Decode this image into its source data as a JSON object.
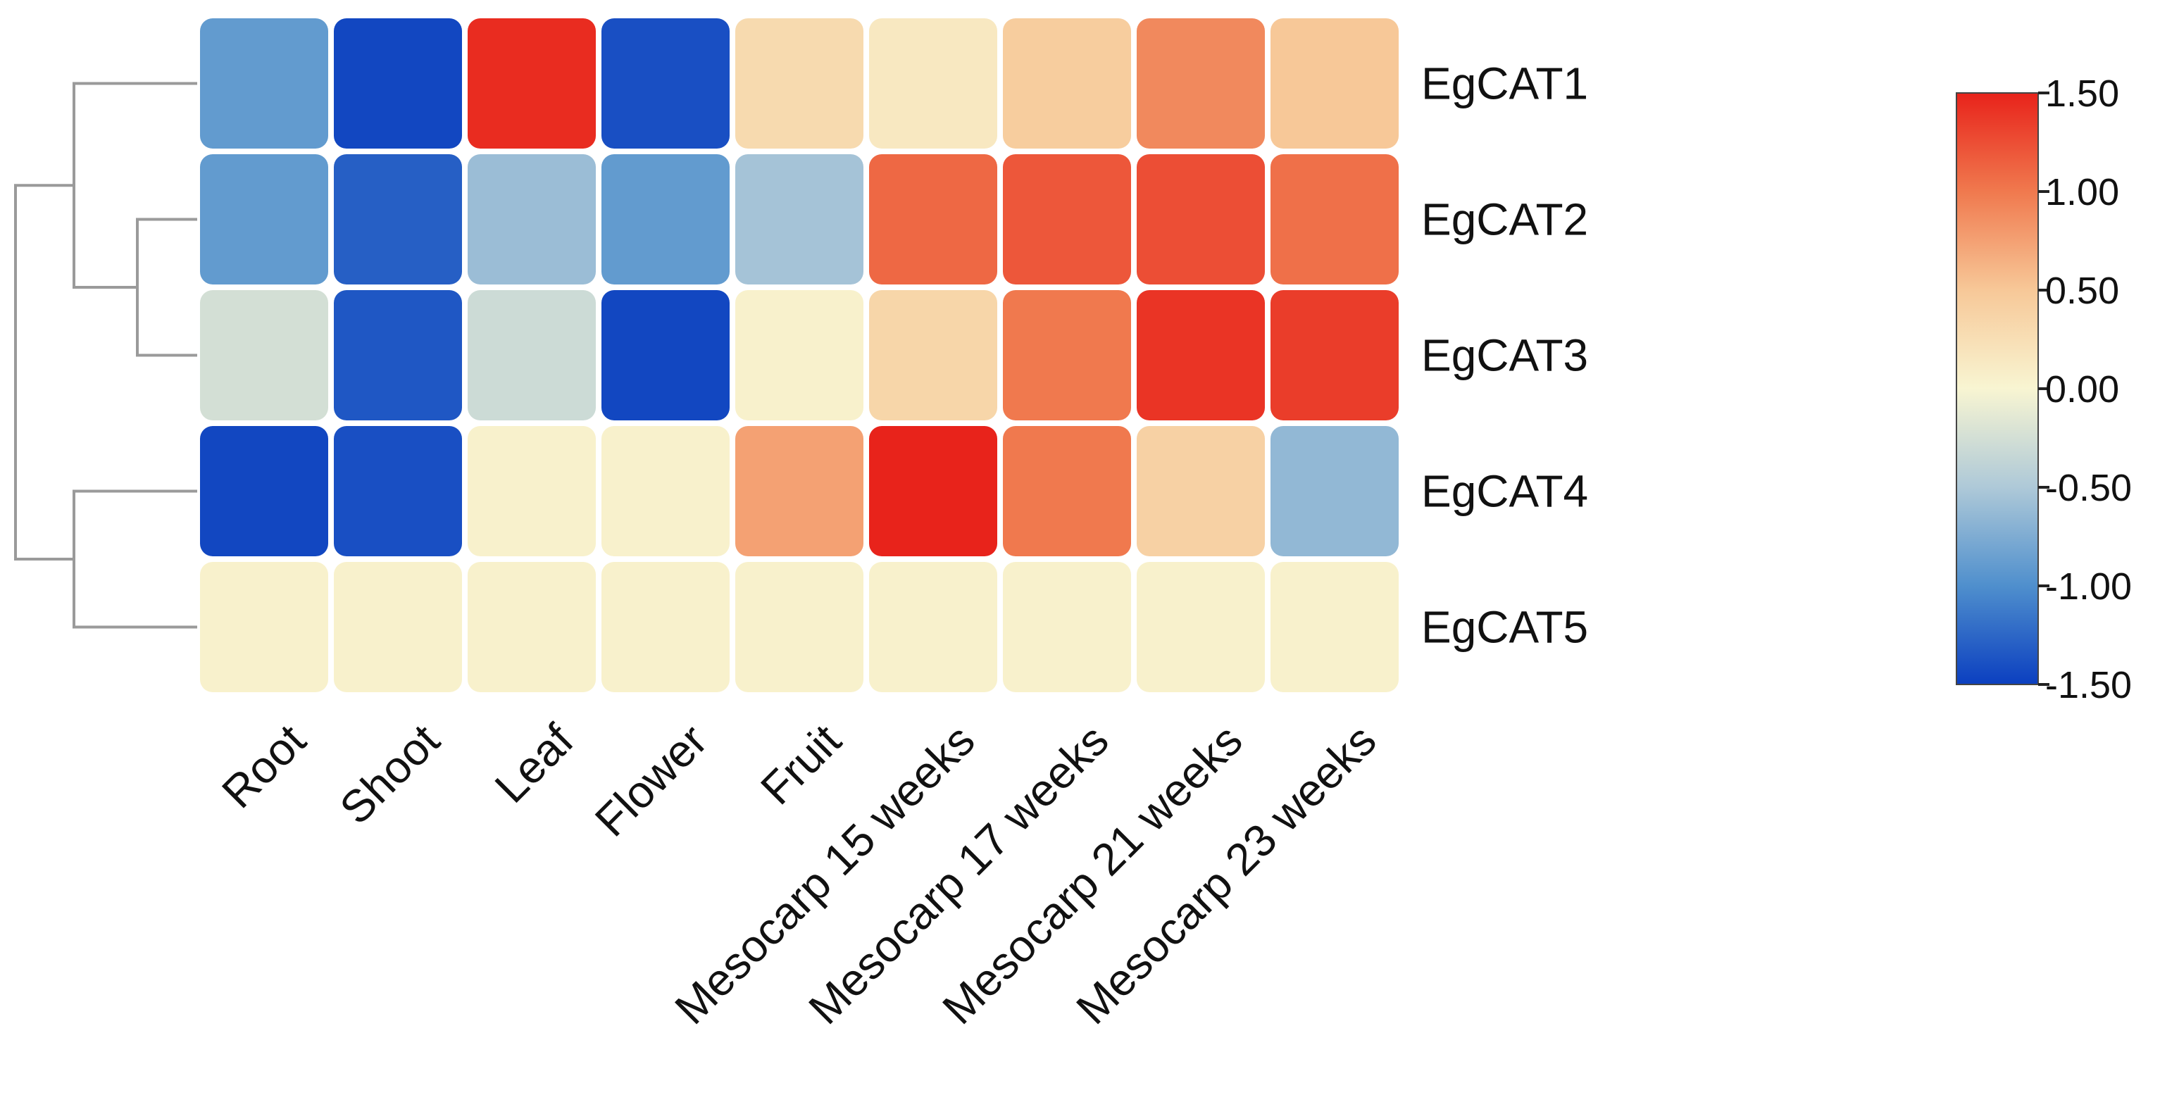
{
  "chart_data": {
    "type": "heatmap",
    "rows": [
      "EgCAT1",
      "EgCAT2",
      "EgCAT3",
      "EgCAT4",
      "EgCAT5"
    ],
    "columns": [
      "Root",
      "Shoot",
      "Leaf",
      "Flower",
      "Fruit",
      "Mesocarp 15 weeks",
      "Mesocarp 17 weeks",
      "Mesocarp 21 weeks",
      "Mesocarp 23 weeks"
    ],
    "values": [
      [
        -0.9,
        -1.45,
        1.45,
        -1.4,
        0.3,
        0.15,
        0.45,
        0.9,
        0.5
      ],
      [
        -0.9,
        -1.3,
        -0.6,
        -0.9,
        -0.55,
        1.1,
        1.2,
        1.25,
        1.05
      ],
      [
        -0.25,
        -1.35,
        -0.3,
        -1.45,
        0.05,
        0.35,
        1.0,
        1.4,
        1.35
      ],
      [
        -1.45,
        -1.4,
        0.05,
        0.05,
        0.75,
        1.5,
        1.0,
        0.4,
        -0.65
      ],
      [
        0.05,
        0.05,
        0.05,
        0.05,
        0.05,
        0.05,
        0.05,
        0.05,
        0.05
      ]
    ],
    "colorbar": {
      "min": -1.5,
      "max": 1.5,
      "ticks": [
        "1.50",
        "1.00",
        "0.50",
        "0.00",
        "-0.50",
        "-1.00",
        "-1.50"
      ],
      "colors": [
        "#e8231b",
        "#f0794e",
        "#f7c898",
        "#f8f5d2",
        "#aec9d8",
        "#4f8fcd",
        "#0b3fc0"
      ]
    },
    "dendrogram": {
      "leaf_order": [
        "EgCAT1",
        "EgCAT2",
        "EgCAT3",
        "EgCAT4",
        "EgCAT5"
      ],
      "clusters": [
        [
          "EgCAT2",
          "EgCAT3"
        ],
        [
          "EgCAT1",
          "EgCAT2",
          "EgCAT3"
        ],
        [
          "EgCAT4",
          "EgCAT5"
        ],
        [
          "EgCAT1",
          "EgCAT2",
          "EgCAT3",
          "EgCAT4",
          "EgCAT5"
        ]
      ]
    }
  }
}
